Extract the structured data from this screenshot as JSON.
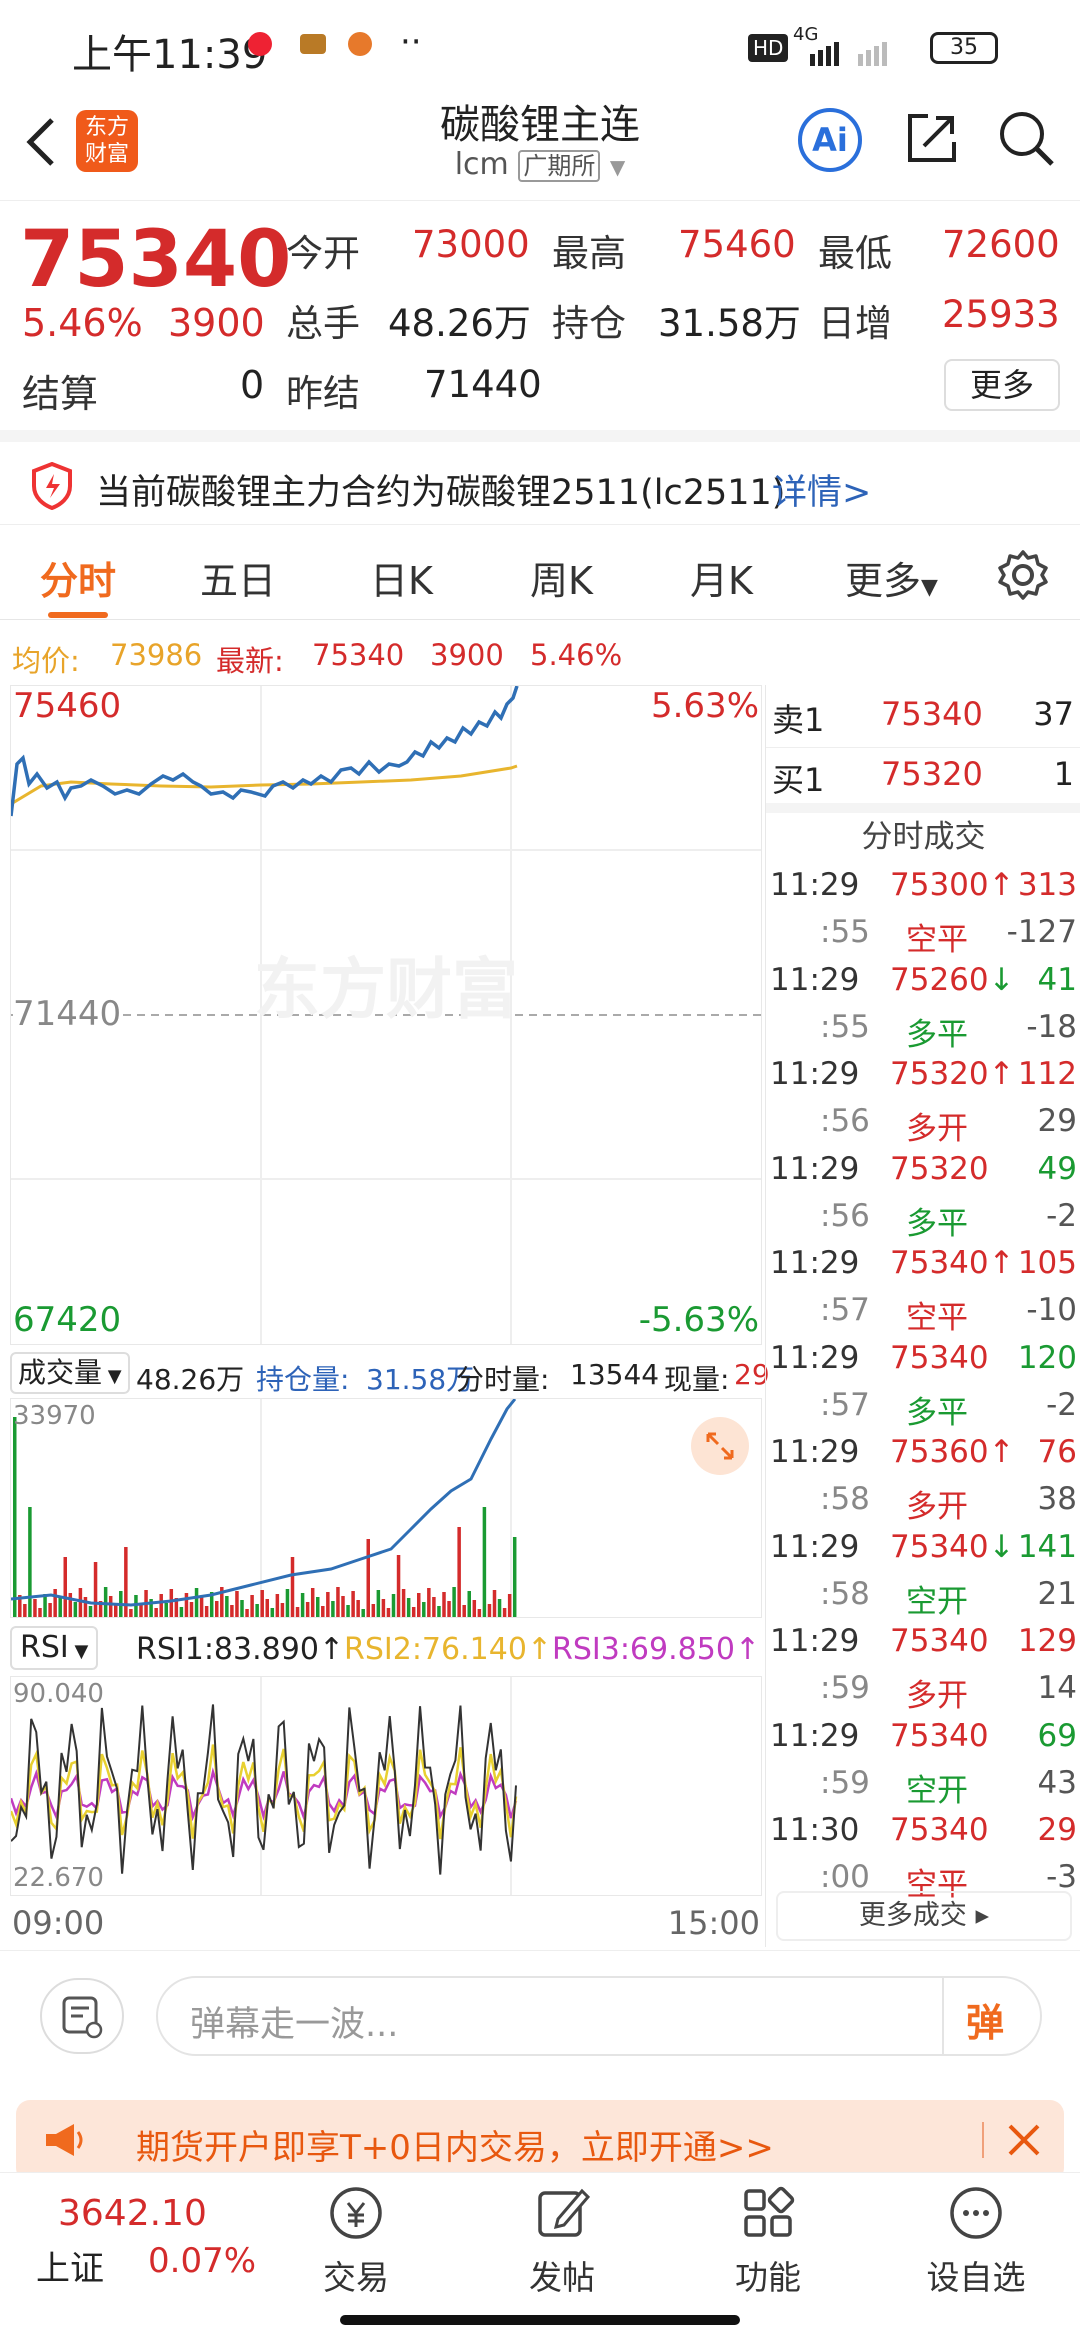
{
  "status": {
    "time": "上午11:39",
    "network": "4G",
    "hd": "HD",
    "battery": "35"
  },
  "header": {
    "title": "碳酸锂主连",
    "code": "lcm",
    "exchange": "广期所",
    "logo_text": "东方财富",
    "ai_label": "Ai"
  },
  "quote": {
    "price": "75340",
    "change_pct": "5.46%",
    "change": "3900",
    "open_label": "今开",
    "open": "73000",
    "high_label": "最高",
    "high": "75460",
    "low_label": "最低",
    "low": "72600",
    "volume_label": "总手",
    "volume": "48.26万",
    "oi_label": "持仓",
    "oi": "31.58万",
    "daily_inc_label": "日增",
    "daily_inc": "25933",
    "settle_label": "结算",
    "settle": "0",
    "prev_settle_label": "昨结",
    "prev_settle": "71440",
    "more": "更多"
  },
  "notice": {
    "text": "当前碳酸锂主力合约为碳酸锂2511(lc2511)",
    "link": "详情>"
  },
  "tabs": [
    "分时",
    "五日",
    "日K",
    "周K",
    "月K",
    "更多"
  ],
  "info": {
    "avg_label": "均价:",
    "avg": "73986",
    "latest_label": "最新:",
    "latest": "75340",
    "chg": "3900",
    "pct": "5.46%"
  },
  "chart": {
    "top_price": "75460",
    "top_pct": "5.63%",
    "mid_price": "71440",
    "bottom_price": "67420",
    "bottom_pct": "-5.63%",
    "watermark": "东方财富"
  },
  "volume_panel": {
    "label": "成交量",
    "vol": "48.26万",
    "oi_label": "持仓量:",
    "oi": "31.58万",
    "min_label": "分时量:",
    "min_vol": "13544",
    "cur_label": "现量:",
    "cur": "29",
    "max": "33970"
  },
  "rsi_panel": {
    "label": "RSI",
    "rsi1": "RSI1:83.890",
    "rsi2": "RSI2:76.140",
    "rsi3": "RSI3:69.850",
    "max": "90.040",
    "min": "22.670"
  },
  "time_axis": {
    "start": "09:00",
    "end": "15:00"
  },
  "orderbook": {
    "sell_label": "卖1",
    "sell_price": "75340",
    "sell_qty": "37",
    "buy_label": "买1",
    "buy_price": "75320",
    "buy_qty": "1"
  },
  "ticks_title": "分时成交",
  "ticks": [
    {
      "time": "11:29",
      "price": "75300",
      "arrow": "↑",
      "qty": "313",
      "sub": ":55",
      "type": "空平",
      "delta": "-127",
      "pc": "red",
      "tc": "red",
      "tyc": "red",
      "dc": "gray"
    },
    {
      "time": "11:29",
      "price": "75260",
      "arrow": "↓",
      "qty": "41",
      "sub": ":55",
      "type": "多平",
      "delta": "-18",
      "pc": "red",
      "tc": "green",
      "tyc": "green",
      "dc": "gray"
    },
    {
      "time": "11:29",
      "price": "75320",
      "arrow": "↑",
      "qty": "112",
      "sub": ":56",
      "type": "多开",
      "delta": "29",
      "pc": "red",
      "tc": "red",
      "tyc": "red",
      "dc": "gray"
    },
    {
      "time": "11:29",
      "price": "75320",
      "arrow": "",
      "qty": "49",
      "sub": ":56",
      "type": "多平",
      "delta": "-2",
      "pc": "red",
      "tc": "green",
      "tyc": "green",
      "dc": "gray"
    },
    {
      "time": "11:29",
      "price": "75340",
      "arrow": "↑",
      "qty": "105",
      "sub": ":57",
      "type": "空平",
      "delta": "-10",
      "pc": "red",
      "tc": "red",
      "tyc": "red",
      "dc": "gray"
    },
    {
      "time": "11:29",
      "price": "75340",
      "arrow": "",
      "qty": "120",
      "sub": ":57",
      "type": "多平",
      "delta": "-2",
      "pc": "red",
      "tc": "green",
      "tyc": "green",
      "dc": "gray"
    },
    {
      "time": "11:29",
      "price": "75360",
      "arrow": "↑",
      "qty": "76",
      "sub": ":58",
      "type": "多开",
      "delta": "38",
      "pc": "red",
      "tc": "red",
      "tyc": "red",
      "dc": "gray"
    },
    {
      "time": "11:29",
      "price": "75340",
      "arrow": "↓",
      "qty": "141",
      "sub": ":58",
      "type": "空开",
      "delta": "21",
      "pc": "red",
      "tc": "green",
      "tyc": "green",
      "dc": "gray"
    },
    {
      "time": "11:29",
      "price": "75340",
      "arrow": "",
      "qty": "129",
      "sub": ":59",
      "type": "多开",
      "delta": "14",
      "pc": "red",
      "tc": "red",
      "tyc": "red",
      "dc": "gray"
    },
    {
      "time": "11:29",
      "price": "75340",
      "arrow": "",
      "qty": "69",
      "sub": ":59",
      "type": "空开",
      "delta": "43",
      "pc": "red",
      "tc": "green",
      "tyc": "green",
      "dc": "gray"
    },
    {
      "time": "11:30",
      "price": "75340",
      "arrow": "",
      "qty": "29",
      "sub": ":00",
      "type": "空平",
      "delta": "-3",
      "pc": "red",
      "tc": "red",
      "tyc": "red",
      "dc": "gray"
    }
  ],
  "more_ticks": "更多成交 ▸",
  "chat": {
    "placeholder": "弹幕走一波...",
    "danmu": "弹"
  },
  "banner": {
    "text": "期货开户即享T+0日内交易，立即开通>>"
  },
  "bottom_nav": {
    "index_value": "3642.10",
    "index_name": "上证",
    "index_pct": "0.07%",
    "items": [
      "交易",
      "发帖",
      "功能",
      "设自选"
    ]
  },
  "colors": {
    "red": "#d42b2b",
    "green": "#1a9a32",
    "blue": "#2d63b8",
    "orange": "#f06a1e",
    "avg_line": "#e8b52e",
    "price_line": "#2f6fb5"
  }
}
